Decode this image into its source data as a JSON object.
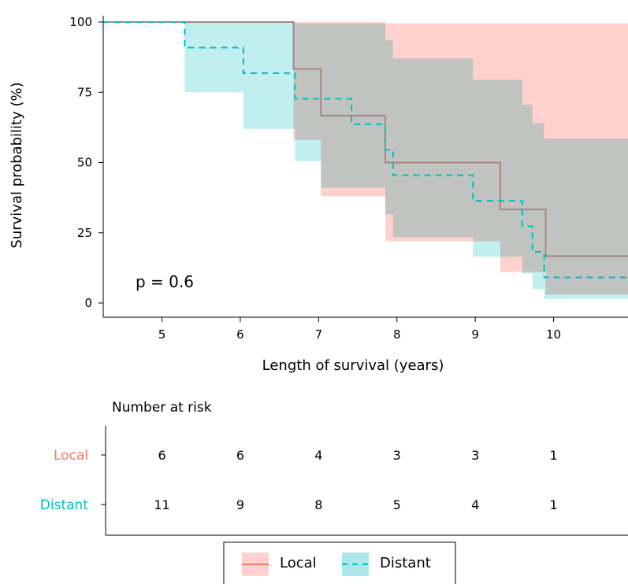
{
  "chart_data": {
    "type": "line",
    "subtype": "kaplan-meier",
    "xlabel": "Length of survival (years)",
    "ylabel": "Survival probability (%)",
    "xlim": [
      4.25,
      10.95
    ],
    "ylim": [
      0,
      100
    ],
    "x_ticks": [
      "5",
      "6",
      "7",
      "8",
      "9",
      "10"
    ],
    "y_ticks": [
      "0",
      "25",
      "50",
      "75",
      "100"
    ],
    "grid": false,
    "annotation": "p = 0.6",
    "legend_position": "bottom",
    "series": [
      {
        "name": "Local",
        "color": "#F8766D",
        "fill": "#FFD1CE",
        "dash": "solid",
        "x": [
          4.25,
          6.68,
          7.03,
          7.85,
          9.32,
          9.9,
          10.95
        ],
        "y": [
          100,
          83.3,
          66.7,
          50,
          33.3,
          16.7,
          16.7
        ],
        "ci_upper": [
          100,
          100,
          99.5,
          99.5,
          99.5,
          99.5,
          99.5
        ],
        "ci_upper_x": [
          4.25,
          7.85,
          9.6,
          10.95
        ],
        "ci_upper_y": [
          100,
          99.5,
          99.5,
          99.5
        ],
        "ci_lower_x": [
          4.25,
          6.68,
          7.03,
          7.85,
          9.32,
          9.9,
          10.95
        ],
        "ci_lower_y": [
          100,
          58,
          38,
          22,
          11,
          3,
          3
        ]
      },
      {
        "name": "Distant",
        "color": "#00BFC4",
        "fill": "#ACE8EA",
        "dash": "dashed",
        "x": [
          4.25,
          5.29,
          6.04,
          6.7,
          7.42,
          7.85,
          7.95,
          8.97,
          9.6,
          9.73,
          9.88,
          10.95
        ],
        "y": [
          100,
          90.9,
          81.8,
          72.7,
          63.6,
          54.5,
          45.5,
          36.4,
          27.3,
          18.2,
          9.1,
          9.1
        ],
        "ci_upper_x": [
          4.25,
          6.7,
          7.85,
          7.95,
          8.97,
          9.6,
          9.73,
          9.88,
          10.95
        ],
        "ci_upper_y": [
          100,
          99.5,
          93.5,
          87,
          79.5,
          70.5,
          64,
          58.5,
          58.5
        ],
        "ci_lower_x": [
          4.25,
          5.29,
          6.04,
          6.7,
          7.03,
          7.42,
          7.85,
          7.95,
          8.97,
          9.6,
          9.73,
          9.88,
          10.95
        ],
        "ci_lower_y": [
          100,
          75,
          62,
          50.5,
          41,
          41,
          31.5,
          23.5,
          16.5,
          10.5,
          5,
          1.5,
          1.5
        ]
      }
    ],
    "risk_table": {
      "title": "Number at risk",
      "times": [
        5,
        6,
        7,
        8,
        9,
        10
      ],
      "rows": [
        {
          "name": "Local",
          "color": "#F8766D",
          "values": [
            "6",
            "6",
            "4",
            "3",
            "3",
            "1"
          ]
        },
        {
          "name": "Distant",
          "color": "#00BFC4",
          "values": [
            "11",
            "9",
            "8",
            "5",
            "4",
            "1"
          ]
        }
      ]
    }
  }
}
